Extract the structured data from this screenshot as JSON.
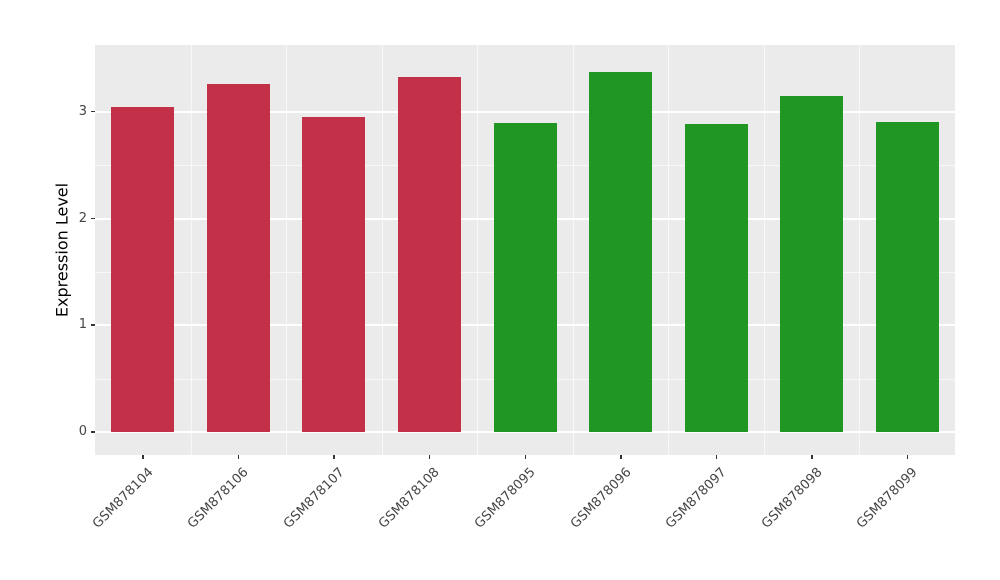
{
  "chart_data": {
    "type": "bar",
    "title": "",
    "xlabel": "",
    "ylabel": "Expression Level",
    "ylim": [
      0,
      3.55
    ],
    "yticks": [
      0,
      1,
      2,
      3
    ],
    "yticks_minor": [
      0.5,
      1.5,
      2.5
    ],
    "legend": "none",
    "grid": "on",
    "categories": [
      "GSM878104",
      "GSM878106",
      "GSM878107",
      "GSM878108",
      "GSM878095",
      "GSM878096",
      "GSM878097",
      "GSM878098",
      "GSM878099"
    ],
    "values": [
      3.05,
      3.26,
      2.95,
      3.33,
      2.9,
      3.37,
      2.89,
      3.15,
      2.91
    ],
    "bar_colors": [
      "#C23148",
      "#C23148",
      "#C23148",
      "#C23148",
      "#1F9722",
      "#1F9722",
      "#1F9722",
      "#1F9722",
      "#1F9722"
    ],
    "groups": [
      {
        "color": "#C23148",
        "samples": [
          "GSM878104",
          "GSM878106",
          "GSM878107",
          "GSM878108"
        ]
      },
      {
        "color": "#1F9722",
        "samples": [
          "GSM878095",
          "GSM878096",
          "GSM878097",
          "GSM878098",
          "GSM878099"
        ]
      }
    ],
    "style": {
      "panel_bg": "#EBEBEB",
      "grid_major": "#FFFFFF",
      "grid_minor": "#FFFFFF",
      "tick_color": "#333333",
      "label_color": "#454545",
      "title_color": "#000000"
    }
  }
}
